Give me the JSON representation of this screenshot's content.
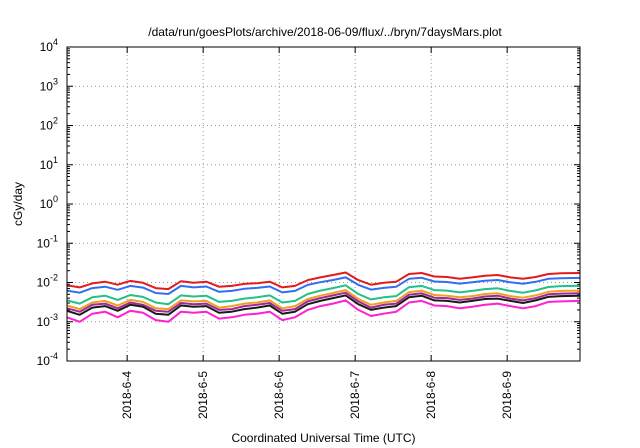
{
  "chart_data": {
    "type": "line",
    "title": "/data/run/goesPlots/archive/2018-06-09/flux/../bryn/7daysMars.plot",
    "xlabel": "Coordinated Universal Time (UTC)",
    "ylabel": "cGy/day",
    "yscale": "log",
    "ylim": [
      0.0001,
      10000
    ],
    "y_ticks": [
      {
        "value": 0.0001,
        "base": "10",
        "exp": "-4"
      },
      {
        "value": 0.001,
        "base": "10",
        "exp": "-3"
      },
      {
        "value": 0.01,
        "base": "10",
        "exp": "-2"
      },
      {
        "value": 0.1,
        "base": "10",
        "exp": "-1"
      },
      {
        "value": 1,
        "base": "10",
        "exp": "0"
      },
      {
        "value": 10,
        "base": "10",
        "exp": "1"
      },
      {
        "value": 100,
        "base": "10",
        "exp": "2"
      },
      {
        "value": 1000,
        "base": "10",
        "exp": "3"
      },
      {
        "value": 10000,
        "base": "10",
        "exp": "4"
      }
    ],
    "xlim": [
      "2018-06-03 05:00",
      "2018-06-09 23:00"
    ],
    "x_ticks": [
      "2018-6-4",
      "2018-6-5",
      "2018-6-6",
      "2018-6-7",
      "2018-6-8",
      "2018-6-9"
    ],
    "grid": true,
    "x": [
      "2018-06-03 05:00",
      "2018-06-03 09:00",
      "2018-06-03 13:00",
      "2018-06-03 17:00",
      "2018-06-03 21:00",
      "2018-06-04 01:00",
      "2018-06-04 05:00",
      "2018-06-04 09:00",
      "2018-06-04 13:00",
      "2018-06-04 17:00",
      "2018-06-04 21:00",
      "2018-06-05 01:00",
      "2018-06-05 05:00",
      "2018-06-05 09:00",
      "2018-06-05 13:00",
      "2018-06-05 17:00",
      "2018-06-05 21:00",
      "2018-06-06 01:00",
      "2018-06-06 05:00",
      "2018-06-06 09:00",
      "2018-06-06 13:00",
      "2018-06-06 17:00",
      "2018-06-06 21:00",
      "2018-06-07 01:00",
      "2018-06-07 05:00",
      "2018-06-07 09:00",
      "2018-06-07 13:00",
      "2018-06-07 17:00",
      "2018-06-07 21:00",
      "2018-06-08 01:00",
      "2018-06-08 05:00",
      "2018-06-08 09:00",
      "2018-06-08 13:00",
      "2018-06-08 17:00",
      "2018-06-08 21:00",
      "2018-06-09 01:00",
      "2018-06-09 05:00",
      "2018-06-09 09:00",
      "2018-06-09 13:00",
      "2018-06-09 17:00",
      "2018-06-09 23:00"
    ],
    "series": [
      {
        "color": "#e41a1c",
        "values": [
          0.0085,
          0.0075,
          0.0095,
          0.0105,
          0.0088,
          0.011,
          0.0098,
          0.0072,
          0.0068,
          0.0108,
          0.0098,
          0.0105,
          0.0078,
          0.0082,
          0.0092,
          0.0096,
          0.0105,
          0.0075,
          0.0082,
          0.0115,
          0.0135,
          0.0155,
          0.018,
          0.0115,
          0.0088,
          0.0098,
          0.0105,
          0.0165,
          0.0175,
          0.0142,
          0.0138,
          0.0125,
          0.0135,
          0.0148,
          0.0155,
          0.0135,
          0.0125,
          0.0138,
          0.0165,
          0.0172,
          0.0175
        ]
      },
      {
        "color": "#2f6ff0",
        "values": [
          0.0062,
          0.0055,
          0.0072,
          0.0078,
          0.0065,
          0.0082,
          0.0074,
          0.0054,
          0.0051,
          0.0082,
          0.0075,
          0.0079,
          0.0058,
          0.0061,
          0.0069,
          0.0073,
          0.0079,
          0.0056,
          0.0061,
          0.0087,
          0.0102,
          0.0116,
          0.0135,
          0.0087,
          0.0066,
          0.0073,
          0.0078,
          0.0124,
          0.0132,
          0.0106,
          0.0103,
          0.0094,
          0.0101,
          0.0111,
          0.0116,
          0.0101,
          0.0093,
          0.0104,
          0.0124,
          0.0128,
          0.0131
        ]
      },
      {
        "color": "#22c08a",
        "values": [
          0.0035,
          0.0029,
          0.0042,
          0.0046,
          0.0036,
          0.0048,
          0.0043,
          0.0031,
          0.0028,
          0.0047,
          0.0044,
          0.0046,
          0.0032,
          0.0034,
          0.0039,
          0.0042,
          0.0047,
          0.0031,
          0.0034,
          0.0051,
          0.0062,
          0.0072,
          0.0085,
          0.0051,
          0.0037,
          0.0042,
          0.0045,
          0.0076,
          0.0082,
          0.0064,
          0.0062,
          0.0056,
          0.0061,
          0.0068,
          0.0071,
          0.0061,
          0.0055,
          0.0063,
          0.0077,
          0.0081,
          0.0083
        ]
      },
      {
        "color": "#f0a020",
        "values": [
          0.0026,
          0.0021,
          0.0031,
          0.0034,
          0.0026,
          0.0036,
          0.0032,
          0.0022,
          0.0021,
          0.0035,
          0.0033,
          0.0034,
          0.0023,
          0.0025,
          0.0029,
          0.0031,
          0.0035,
          0.0022,
          0.0025,
          0.0038,
          0.0046,
          0.0054,
          0.0064,
          0.0038,
          0.0027,
          0.0031,
          0.0034,
          0.0057,
          0.0062,
          0.0048,
          0.0046,
          0.0042,
          0.0045,
          0.0051,
          0.0053,
          0.0045,
          0.0041,
          0.0047,
          0.0058,
          0.0061,
          0.0062
        ]
      },
      {
        "color": "#a0289a",
        "values": [
          0.0022,
          0.0018,
          0.0027,
          0.0029,
          0.0022,
          0.0031,
          0.0027,
          0.0019,
          0.0018,
          0.003,
          0.0028,
          0.0029,
          0.002,
          0.0021,
          0.0025,
          0.0027,
          0.003,
          0.0019,
          0.0021,
          0.0033,
          0.004,
          0.0047,
          0.0055,
          0.0033,
          0.0023,
          0.0027,
          0.0029,
          0.0049,
          0.0053,
          0.0041,
          0.004,
          0.0036,
          0.0039,
          0.0044,
          0.0046,
          0.0039,
          0.0035,
          0.004,
          0.005,
          0.0052,
          0.0053
        ]
      },
      {
        "color": "#1a1a1a",
        "values": [
          0.0019,
          0.0015,
          0.0023,
          0.0025,
          0.0019,
          0.0027,
          0.0024,
          0.0016,
          0.0015,
          0.0026,
          0.0024,
          0.0025,
          0.0017,
          0.0018,
          0.0021,
          0.0023,
          0.0026,
          0.0016,
          0.0018,
          0.0028,
          0.0034,
          0.004,
          0.0047,
          0.0028,
          0.002,
          0.0023,
          0.0025,
          0.0042,
          0.0046,
          0.0035,
          0.0034,
          0.0031,
          0.0034,
          0.0038,
          0.0039,
          0.0034,
          0.003,
          0.0035,
          0.0043,
          0.0045,
          0.0046
        ]
      },
      {
        "color": "#ff20d0",
        "values": [
          0.0013,
          0.001,
          0.0016,
          0.0018,
          0.0013,
          0.0019,
          0.0017,
          0.0011,
          0.001,
          0.0018,
          0.0017,
          0.0018,
          0.0012,
          0.0013,
          0.0015,
          0.0016,
          0.0018,
          0.0011,
          0.0013,
          0.002,
          0.0025,
          0.0029,
          0.0035,
          0.002,
          0.0014,
          0.0016,
          0.0018,
          0.0031,
          0.0034,
          0.0026,
          0.0025,
          0.0022,
          0.0024,
          0.0027,
          0.0029,
          0.0025,
          0.0022,
          0.0025,
          0.0032,
          0.0033,
          0.0034
        ]
      }
    ]
  }
}
